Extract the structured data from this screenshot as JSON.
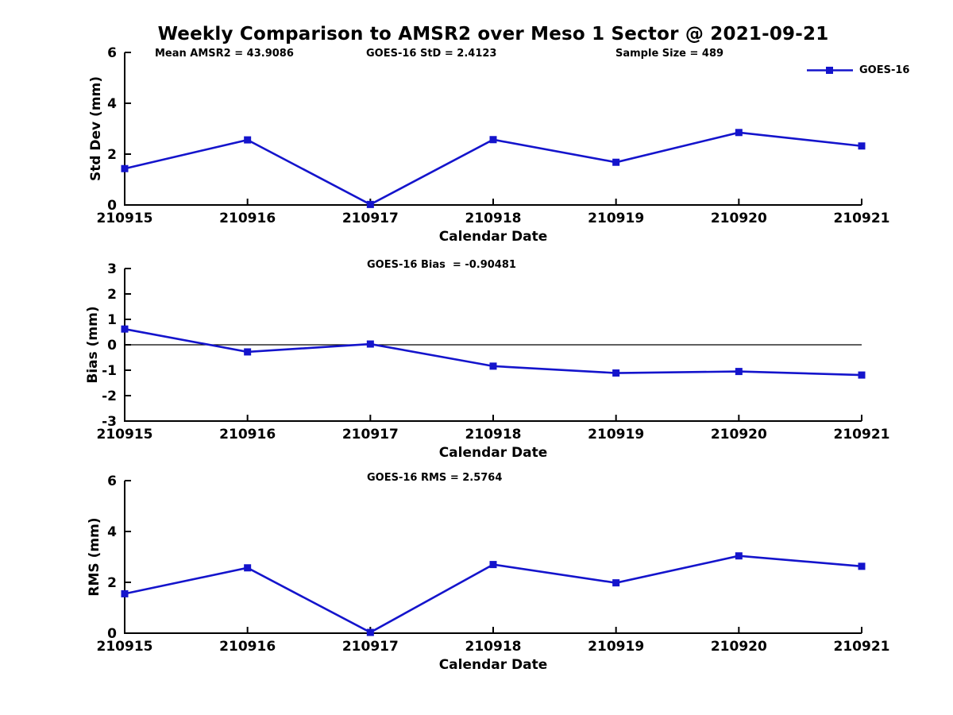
{
  "title": "Weekly Comparison to AMSR2 over Meso 1 Sector @ 2021-09-21",
  "colors": {
    "line_blue": "#1414CC",
    "axis_black": "#000000",
    "background": "#ffffff"
  },
  "legend": {
    "label": "GOES-16",
    "color": "#1414CC",
    "position": "top-right"
  },
  "annotations": {
    "mean_amsr2": "Mean AMSR2 = 43.9086",
    "goes16_std": "GOES-16 StD = 2.4123",
    "sample_size": "Sample Size = 489",
    "goes16_bias": "GOES-16 Bias  = -0.90481",
    "goes16_rms": "GOES-16 RMS = 2.5764"
  },
  "chart_data": [
    {
      "type": "line",
      "categories": [
        "210915",
        "210916",
        "210917",
        "210918",
        "210919",
        "210920",
        "210921"
      ],
      "series": [
        {
          "name": "GOES-16",
          "values": [
            1.43,
            2.56,
            0.02,
            2.57,
            1.68,
            2.85,
            2.32
          ]
        }
      ],
      "xlabel": "Calendar Date",
      "ylabel": "Std Dev (mm)",
      "ylim": [
        0,
        6
      ],
      "yticks": [
        0,
        2,
        4,
        6
      ],
      "zero_line": false,
      "grid": false,
      "line_color": "#1414CC",
      "marker": "square",
      "legend_position": "top-right"
    },
    {
      "type": "line",
      "categories": [
        "210915",
        "210916",
        "210917",
        "210918",
        "210919",
        "210920",
        "210921"
      ],
      "series": [
        {
          "name": "GOES-16",
          "values": [
            0.62,
            -0.28,
            0.03,
            -0.84,
            -1.11,
            -1.05,
            -1.19
          ]
        }
      ],
      "xlabel": "Calendar Date",
      "ylabel": "Bias (mm)",
      "ylim": [
        -3,
        3
      ],
      "yticks": [
        -3,
        -2,
        -1,
        0,
        1,
        2,
        3
      ],
      "zero_line": true,
      "grid": false,
      "line_color": "#1414CC",
      "marker": "square"
    },
    {
      "type": "line",
      "categories": [
        "210915",
        "210916",
        "210917",
        "210918",
        "210919",
        "210920",
        "210921"
      ],
      "series": [
        {
          "name": "GOES-16",
          "values": [
            1.55,
            2.57,
            0.03,
            2.7,
            1.98,
            3.04,
            2.63
          ]
        }
      ],
      "xlabel": "Calendar Date",
      "ylabel": "RMS (mm)",
      "ylim": [
        0,
        6
      ],
      "yticks": [
        0,
        2,
        4,
        6
      ],
      "zero_line": false,
      "grid": false,
      "line_color": "#1414CC",
      "marker": "square"
    }
  ]
}
